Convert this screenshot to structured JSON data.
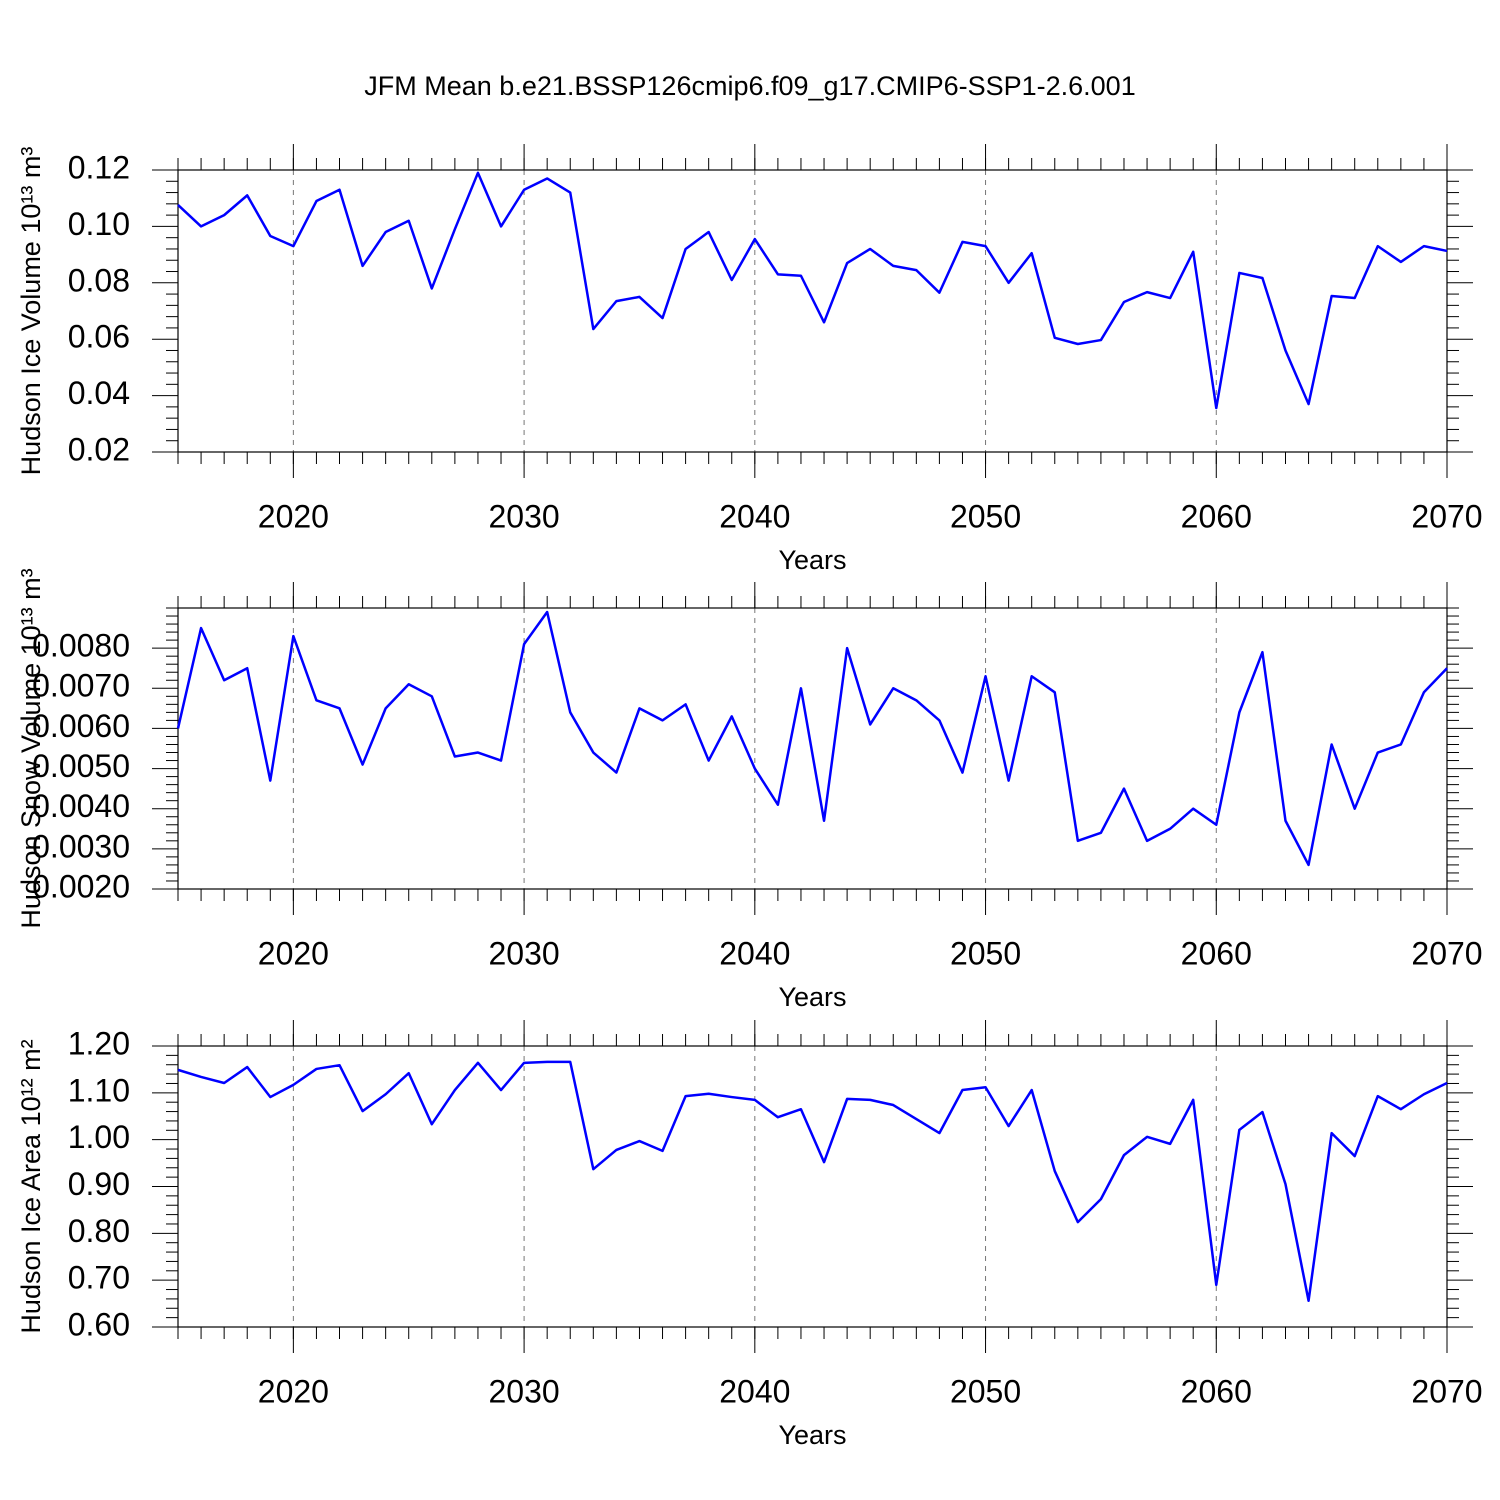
{
  "chart_data": [
    {
      "type": "line",
      "title": "JFM Mean b.e21.BSSP126cmip6.f09_g17.CMIP6-SSP1-2.6.001",
      "x_label": "Years",
      "y_label": "Hudson Ice Volume 10¹³ m³",
      "color": "#0000ff",
      "x": [
        2015,
        2016,
        2017,
        2018,
        2019,
        2020,
        2021,
        2022,
        2023,
        2024,
        2025,
        2026,
        2027,
        2028,
        2029,
        2030,
        2031,
        2032,
        2033,
        2034,
        2035,
        2036,
        2037,
        2038,
        2039,
        2040,
        2041,
        2042,
        2043,
        2044,
        2045,
        2046,
        2047,
        2048,
        2049,
        2050,
        2051,
        2052,
        2053,
        2054,
        2055,
        2056,
        2057,
        2058,
        2059,
        2060,
        2061,
        2062,
        2063,
        2064,
        2065,
        2066,
        2067,
        2068,
        2069,
        2070
      ],
      "values": [
        0.1076,
        0.1,
        0.104,
        0.111,
        0.0966,
        0.093,
        0.109,
        0.113,
        0.086,
        0.098,
        0.102,
        0.078,
        0.099,
        0.119,
        0.1,
        0.113,
        0.117,
        0.112,
        0.0636,
        0.0735,
        0.075,
        0.0675,
        0.092,
        0.098,
        0.081,
        0.0955,
        0.083,
        0.0825,
        0.066,
        0.087,
        0.092,
        0.086,
        0.0845,
        0.0765,
        0.0945,
        0.093,
        0.08,
        0.0905,
        0.0605,
        0.0583,
        0.0597,
        0.0732,
        0.0767,
        0.0746,
        0.091,
        0.0356,
        0.0835,
        0.0817,
        0.056,
        0.037,
        0.0753,
        0.0746,
        0.093,
        0.0874,
        0.093,
        0.0913
      ],
      "xlim": [
        2015,
        2070
      ],
      "xticks": [
        2020,
        2030,
        2040,
        2050,
        2060,
        2070
      ],
      "ylim": [
        0.02,
        0.12
      ],
      "yticks": [
        0.02,
        0.04,
        0.06,
        0.08,
        {
          "value": 0.1,
          "label": "0.10"
        },
        0.12
      ],
      "grid": true
    },
    {
      "type": "line",
      "x_label": "Years",
      "y_label": "Hudson Snow Volume 10¹³ m³",
      "color": "#0000ff",
      "x": [
        2015,
        2016,
        2017,
        2018,
        2019,
        2020,
        2021,
        2022,
        2023,
        2024,
        2025,
        2026,
        2027,
        2028,
        2029,
        2030,
        2031,
        2032,
        2033,
        2034,
        2035,
        2036,
        2037,
        2038,
        2039,
        2040,
        2041,
        2042,
        2043,
        2044,
        2045,
        2046,
        2047,
        2048,
        2049,
        2050,
        2051,
        2052,
        2053,
        2054,
        2055,
        2056,
        2057,
        2058,
        2059,
        2060,
        2061,
        2062,
        2063,
        2064,
        2065,
        2066,
        2067,
        2068,
        2069,
        2070
      ],
      "values": [
        0.006,
        0.0085,
        0.0072,
        0.0075,
        0.0047,
        0.0083,
        0.0067,
        0.0065,
        0.0051,
        0.0065,
        0.0071,
        0.0068,
        0.0053,
        0.0054,
        0.0052,
        0.0081,
        0.0089,
        0.0064,
        0.0054,
        0.0049,
        0.0065,
        0.0062,
        0.0066,
        0.0052,
        0.0063,
        0.005,
        0.0041,
        0.007,
        0.0037,
        0.008,
        0.0061,
        0.007,
        0.0067,
        0.0062,
        0.0049,
        0.0073,
        0.0047,
        0.0073,
        0.0069,
        0.0032,
        0.0034,
        0.0045,
        0.0032,
        0.0035,
        0.004,
        0.0036,
        0.0064,
        0.0079,
        0.0037,
        0.0026,
        0.0056,
        0.004,
        0.0054,
        0.0056,
        0.0069,
        0.0075
      ],
      "xlim": [
        2015,
        2070
      ],
      "xticks": [
        2020,
        2030,
        2040,
        2050,
        2060,
        2070
      ],
      "ylim": [
        0.002,
        0.009
      ],
      "yticks": [
        {
          "value": 0.002,
          "label": "0.0020"
        },
        {
          "value": 0.003,
          "label": "0.0030"
        },
        {
          "value": 0.004,
          "label": "0.0040"
        },
        {
          "value": 0.005,
          "label": "0.0050"
        },
        {
          "value": 0.006,
          "label": "0.0060"
        },
        {
          "value": 0.007,
          "label": "0.0070"
        },
        {
          "value": 0.008,
          "label": "0.0080"
        }
      ],
      "grid": true
    },
    {
      "type": "line",
      "x_label": "Years",
      "y_label": "Hudson Ice Area 10¹² m²",
      "color": "#0000ff",
      "x": [
        2015,
        2016,
        2017,
        2018,
        2019,
        2020,
        2021,
        2022,
        2023,
        2024,
        2025,
        2026,
        2027,
        2028,
        2029,
        2030,
        2031,
        2032,
        2033,
        2034,
        2035,
        2036,
        2037,
        2038,
        2039,
        2040,
        2041,
        2042,
        2043,
        2044,
        2045,
        2046,
        2047,
        2048,
        2049,
        2050,
        2051,
        2052,
        2053,
        2054,
        2055,
        2056,
        2057,
        2058,
        2059,
        2060,
        2061,
        2062,
        2063,
        2064,
        2065,
        2066,
        2067,
        2068,
        2069,
        2070
      ],
      "values": [
        1.149,
        1.134,
        1.121,
        1.155,
        1.091,
        1.117,
        1.151,
        1.159,
        1.061,
        1.097,
        1.142,
        1.033,
        1.106,
        1.164,
        1.106,
        1.164,
        1.166,
        1.166,
        0.937,
        0.978,
        0.997,
        0.976,
        1.093,
        1.098,
        1.091,
        1.085,
        1.048,
        1.065,
        0.952,
        1.087,
        1.085,
        1.074,
        1.044,
        1.014,
        1.106,
        1.112,
        1.029,
        1.106,
        0.933,
        0.824,
        0.873,
        0.967,
        1.006,
        0.991,
        1.085,
        0.69,
        1.021,
        1.059,
        0.905,
        0.656,
        1.014,
        0.965,
        1.093,
        1.065,
        1.097,
        1.121
      ],
      "xlim": [
        2015,
        2070
      ],
      "xticks": [
        2020,
        2030,
        2040,
        2050,
        2060,
        2070
      ],
      "ylim": [
        0.6,
        1.2
      ],
      "yticks": [
        {
          "value": 0.6,
          "label": "0.60"
        },
        {
          "value": 0.7,
          "label": "0.70"
        },
        {
          "value": 0.8,
          "label": "0.80"
        },
        {
          "value": 0.9,
          "label": "0.90"
        },
        {
          "value": 1.0,
          "label": "1.00"
        },
        {
          "value": 1.1,
          "label": "1.10"
        },
        {
          "value": 1.2,
          "label": "1.20"
        }
      ],
      "grid": true
    }
  ]
}
